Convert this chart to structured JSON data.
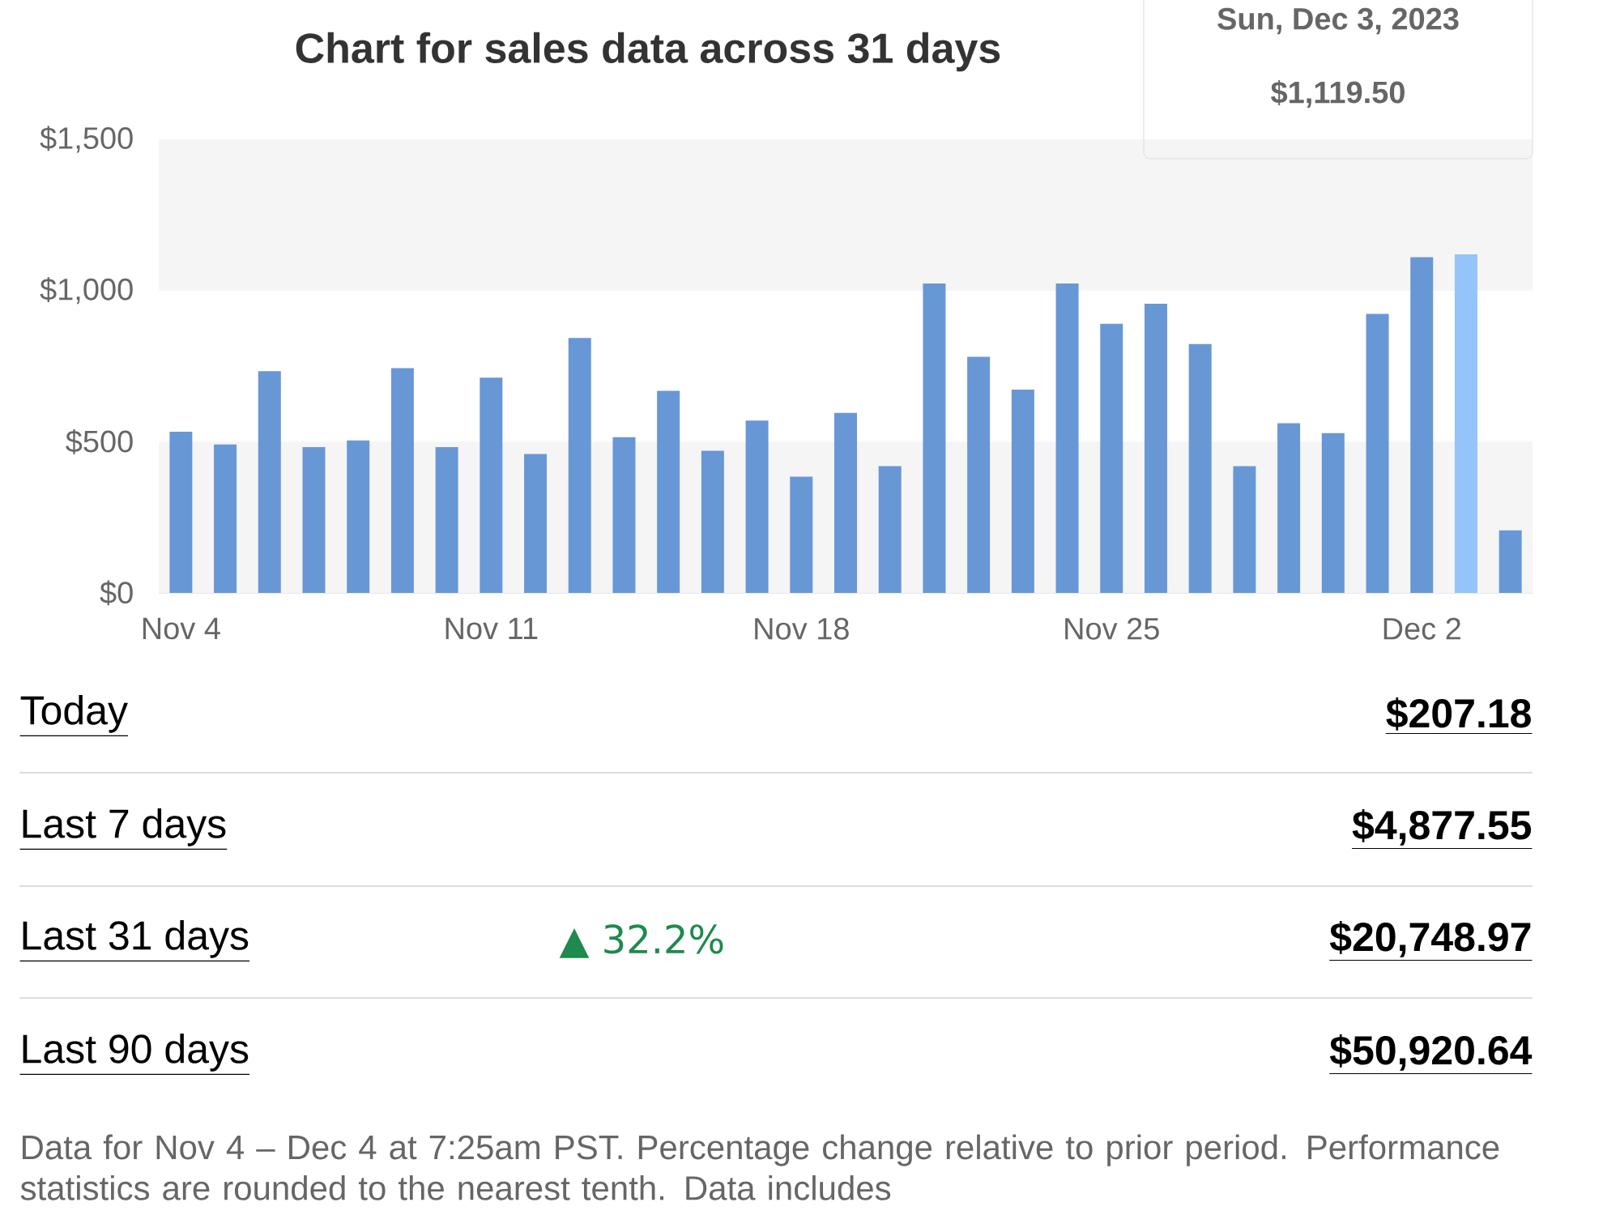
{
  "chart_data": {
    "type": "bar",
    "title": "Chart for sales data across 31 days",
    "categories": [
      "Nov 4",
      null,
      null,
      null,
      null,
      null,
      null,
      "Nov 11",
      null,
      null,
      null,
      null,
      null,
      null,
      "Nov 18",
      null,
      null,
      null,
      null,
      null,
      null,
      "Nov 25",
      null,
      null,
      null,
      null,
      null,
      null,
      "Dec 2",
      null,
      null
    ],
    "values": [
      533,
      491,
      733,
      482,
      504,
      743,
      482,
      712,
      459,
      843,
      515,
      668,
      470,
      570,
      384,
      595,
      419,
      1023,
      781,
      672,
      1023,
      890,
      956,
      823,
      419,
      561,
      528,
      923,
      1110,
      1119.5,
      207
    ],
    "colors": [
      "#6897d6",
      "#6897d6",
      "#6897d6",
      "#6897d6",
      "#6897d6",
      "#6897d6",
      "#6897d6",
      "#6897d6",
      "#6897d6",
      "#6897d6",
      "#6897d6",
      "#6897d6",
      "#6897d6",
      "#6897d6",
      "#6897d6",
      "#6897d6",
      "#6897d6",
      "#6897d6",
      "#6897d6",
      "#6897d6",
      "#6897d6",
      "#6897d6",
      "#6897d6",
      "#6897d6",
      "#6897d6",
      "#6897d6",
      "#6897d6",
      "#6897d6",
      "#6897d6",
      "#94c4fa",
      "#6897d6"
    ],
    "ylim": [
      0,
      1500
    ],
    "yticks": [
      {
        "value": 0,
        "label": "$0"
      },
      {
        "value": 500,
        "label": "$500"
      },
      {
        "value": 1000,
        "label": "$1,000"
      },
      {
        "value": 1500,
        "label": "$1,500"
      }
    ],
    "bands": [
      {
        "axis": "y",
        "from": 0,
        "to": 500,
        "color": "#f5f5f5"
      },
      {
        "axis": "y",
        "from": 1000,
        "to": 1500,
        "color": "#f5f5f5"
      }
    ],
    "annotations": [
      "Sun, Dec 3, 2023",
      "$1,119.50",
      "Today",
      "$207.18",
      "Last 7 days",
      "$4,877.55",
      "Last 31 days",
      "▲ 32.2%",
      "$20,748.97",
      "Last 90 days",
      "$50,920.64",
      "Data for Nov 4 – Dec 4 at 7:25am PST. Percentage change relative to prior period. Performance statistics are rounded to the nearest tenth. Data includes"
    ]
  }
}
